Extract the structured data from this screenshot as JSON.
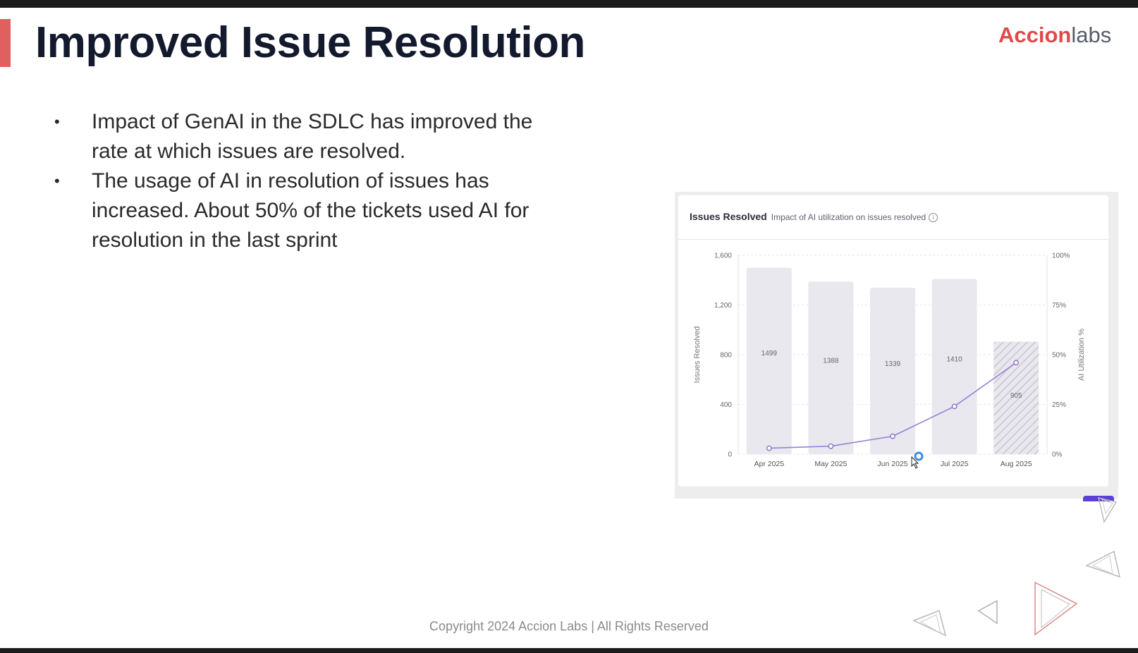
{
  "slide": {
    "title": "Improved Issue Resolution",
    "bullets": [
      "Impact of GenAI in the SDLC has improved the rate at which issues are resolved.",
      "The usage of AI in resolution of issues has increased. About 50% of the tickets used AI for resolution in the last sprint"
    ],
    "bullet_glyph": "•",
    "logo": {
      "part1": "Accion",
      "part2": "labs"
    },
    "footer": "Copyright 2024 Accion Labs | All Rights Reserved",
    "colors": {
      "title": "#141a2e",
      "accent_bar": "#e06060",
      "logo_red": "#e04a4a",
      "line": "#9a7fd8"
    },
    "icons": [
      "info-icon",
      "mouse-cursor-icon",
      "triangle-decoration"
    ]
  },
  "chart_data": {
    "type": "bar",
    "title": "Issues Resolved",
    "subtitle": "Impact of AI utilization on issues resolved",
    "categories": [
      "Apr 2025",
      "May 2025",
      "Jun 2025",
      "Jul 2025",
      "Aug 2025"
    ],
    "series": [
      {
        "values": [
          1499,
          1388,
          1339,
          1410,
          905
        ],
        "data_labels": [
          "1499",
          "1388",
          "1339",
          "1410",
          "905"
        ],
        "axis": "left",
        "kind": "bar",
        "last_bar_hatched": true
      },
      {
        "values": [
          3,
          4,
          9,
          24,
          46
        ],
        "axis": "right",
        "kind": "line"
      }
    ],
    "ylabel": "Issues Resolved",
    "y2label": "AI Utilization %",
    "ylim": [
      0,
      1600
    ],
    "yticks": [
      "0",
      "400",
      "800",
      "1,200",
      "1,600"
    ],
    "y2lim": [
      0,
      100
    ],
    "y2ticks": [
      "0%",
      "25%",
      "50%",
      "75%",
      "100%"
    ],
    "grid": true,
    "legend": "none"
  }
}
